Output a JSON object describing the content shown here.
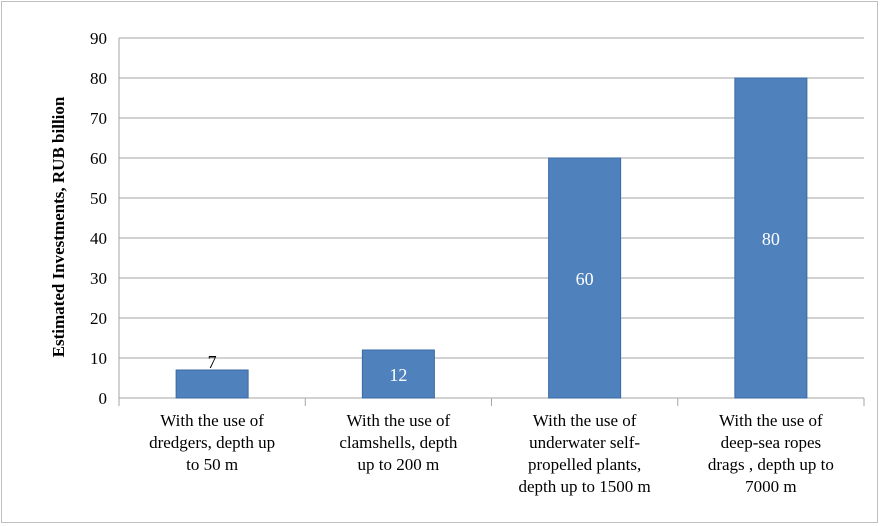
{
  "chart_data": {
    "type": "bar",
    "categories": [
      [
        "With the use of",
        "dredgers, depth up",
        "to 50 m"
      ],
      [
        "With the use of",
        "clamshells, depth",
        "up to 200 m"
      ],
      [
        "With the use of",
        "underwater self-",
        "propelled plants,",
        "depth up to 1500 m"
      ],
      [
        "With the use of",
        "deep-sea ropes",
        "drags , depth up to",
        "7000 m"
      ]
    ],
    "values": [
      7,
      12,
      60,
      80
    ],
    "data_labels": [
      "7",
      "12",
      "60",
      "80"
    ],
    "title": "",
    "xlabel": "",
    "ylabel": "Estimated Investments, RUB billion",
    "ylim": [
      0,
      90
    ],
    "yticks": [
      0,
      10,
      20,
      30,
      40,
      50,
      60,
      70,
      80,
      90
    ],
    "grid": true,
    "legend": "none",
    "bar_color": "#4f81bd",
    "bar_border_color": "#3a6aa3",
    "grid_color": "#a6a6a6",
    "label_inside_color": "#ffffff",
    "label_outside_color": "#000000"
  }
}
